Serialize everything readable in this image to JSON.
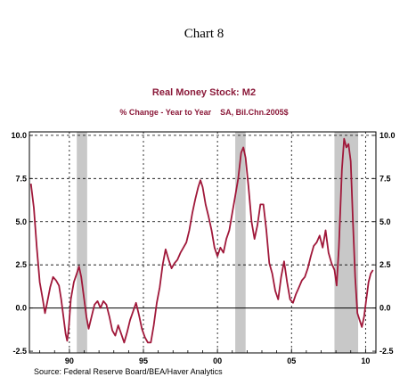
{
  "heading": "Chart 8",
  "chart_data": {
    "type": "line",
    "title": "Real Money Stock: M2",
    "subtitle": "% Change - Year to Year    SA, Bil.Chn.2005$",
    "source": "Source:  Federal Reserve Board/BEA/Haver Analytics",
    "xlim": [
      1987.3,
      2010.7
    ],
    "ylim": [
      -2.6,
      10.2
    ],
    "x_ticks": [
      {
        "value": 1990,
        "label": "90"
      },
      {
        "value": 1995,
        "label": "95"
      },
      {
        "value": 2000,
        "label": "00"
      },
      {
        "value": 2005,
        "label": "05"
      },
      {
        "value": 2010,
        "label": "10"
      }
    ],
    "y_ticks": [
      {
        "value": 10,
        "label": "10.0"
      },
      {
        "value": 7.5,
        "label": "7.5"
      },
      {
        "value": 5,
        "label": "5.0"
      },
      {
        "value": 2.5,
        "label": "2.5"
      },
      {
        "value": 0,
        "label": "0.0"
      },
      {
        "value": -2.5,
        "label": "-2.5"
      }
    ],
    "grid": {
      "y_dashed_at": [
        10,
        7.5,
        5,
        2.5
      ],
      "zero_line": 0,
      "x_dashed_at": [
        1990,
        1995,
        2000,
        2005,
        2010
      ]
    },
    "recessions": [
      [
        1990.5,
        1991.2
      ],
      [
        2001.2,
        2001.9
      ],
      [
        2007.9,
        2009.5
      ]
    ],
    "series": [
      {
        "color": "#a0183a",
        "points": [
          [
            1987.4,
            7.2
          ],
          [
            1987.6,
            5.8
          ],
          [
            1987.8,
            3.5
          ],
          [
            1988.0,
            1.5
          ],
          [
            1988.2,
            0.5
          ],
          [
            1988.35,
            -0.3
          ],
          [
            1988.5,
            0.3
          ],
          [
            1988.7,
            1.2
          ],
          [
            1988.9,
            1.8
          ],
          [
            1989.1,
            1.6
          ],
          [
            1989.3,
            1.3
          ],
          [
            1989.45,
            0.5
          ],
          [
            1989.6,
            -0.5
          ],
          [
            1989.75,
            -1.5
          ],
          [
            1989.85,
            -1.9
          ],
          [
            1989.95,
            -1.2
          ],
          [
            1990.1,
            0.5
          ],
          [
            1990.3,
            1.5
          ],
          [
            1990.5,
            2.0
          ],
          [
            1990.65,
            2.4
          ],
          [
            1990.8,
            1.8
          ],
          [
            1991.0,
            0.5
          ],
          [
            1991.15,
            -0.5
          ],
          [
            1991.3,
            -1.2
          ],
          [
            1991.5,
            -0.5
          ],
          [
            1991.7,
            0.2
          ],
          [
            1991.9,
            0.4
          ],
          [
            1992.1,
            0.0
          ],
          [
            1992.3,
            0.4
          ],
          [
            1992.5,
            0.2
          ],
          [
            1992.7,
            -0.5
          ],
          [
            1992.9,
            -1.3
          ],
          [
            1993.1,
            -1.6
          ],
          [
            1993.3,
            -1.0
          ],
          [
            1993.5,
            -1.5
          ],
          [
            1993.7,
            -2.0
          ],
          [
            1993.9,
            -1.4
          ],
          [
            1994.1,
            -0.7
          ],
          [
            1994.3,
            -0.2
          ],
          [
            1994.5,
            0.3
          ],
          [
            1994.7,
            -0.4
          ],
          [
            1994.9,
            -1.2
          ],
          [
            1995.1,
            -1.7
          ],
          [
            1995.3,
            -2.0
          ],
          [
            1995.5,
            -2.0
          ],
          [
            1995.7,
            -1.0
          ],
          [
            1995.9,
            0.3
          ],
          [
            1996.1,
            1.2
          ],
          [
            1996.3,
            2.5
          ],
          [
            1996.5,
            3.4
          ],
          [
            1996.7,
            2.8
          ],
          [
            1996.9,
            2.3
          ],
          [
            1997.1,
            2.6
          ],
          [
            1997.3,
            2.8
          ],
          [
            1997.5,
            3.2
          ],
          [
            1997.7,
            3.5
          ],
          [
            1997.9,
            3.8
          ],
          [
            1998.1,
            4.5
          ],
          [
            1998.3,
            5.5
          ],
          [
            1998.5,
            6.3
          ],
          [
            1998.7,
            7.0
          ],
          [
            1998.85,
            7.4
          ],
          [
            1999.0,
            7.0
          ],
          [
            1999.2,
            6.0
          ],
          [
            1999.4,
            5.3
          ],
          [
            1999.6,
            4.5
          ],
          [
            1999.8,
            3.5
          ],
          [
            2000.0,
            3.0
          ],
          [
            2000.2,
            3.5
          ],
          [
            2000.4,
            3.2
          ],
          [
            2000.6,
            4.0
          ],
          [
            2000.8,
            4.5
          ],
          [
            2001.0,
            5.5
          ],
          [
            2001.2,
            6.5
          ],
          [
            2001.4,
            7.5
          ],
          [
            2001.6,
            9.0
          ],
          [
            2001.75,
            9.3
          ],
          [
            2001.9,
            8.7
          ],
          [
            2002.1,
            7.0
          ],
          [
            2002.3,
            5.0
          ],
          [
            2002.5,
            4.0
          ],
          [
            2002.7,
            4.8
          ],
          [
            2002.9,
            6.0
          ],
          [
            2003.1,
            6.0
          ],
          [
            2003.3,
            4.5
          ],
          [
            2003.5,
            2.6
          ],
          [
            2003.7,
            2.0
          ],
          [
            2003.9,
            1.0
          ],
          [
            2004.1,
            0.5
          ],
          [
            2004.3,
            1.8
          ],
          [
            2004.5,
            2.7
          ],
          [
            2004.7,
            1.5
          ],
          [
            2004.9,
            0.5
          ],
          [
            2005.1,
            0.3
          ],
          [
            2005.3,
            0.8
          ],
          [
            2005.5,
            1.2
          ],
          [
            2005.7,
            1.6
          ],
          [
            2005.9,
            1.8
          ],
          [
            2006.1,
            2.3
          ],
          [
            2006.3,
            3.0
          ],
          [
            2006.5,
            3.6
          ],
          [
            2006.7,
            3.8
          ],
          [
            2006.9,
            4.2
          ],
          [
            2007.1,
            3.5
          ],
          [
            2007.3,
            4.5
          ],
          [
            2007.5,
            3.2
          ],
          [
            2007.7,
            2.6
          ],
          [
            2007.9,
            2.2
          ],
          [
            2008.05,
            1.3
          ],
          [
            2008.2,
            3.5
          ],
          [
            2008.4,
            8.0
          ],
          [
            2008.55,
            9.8
          ],
          [
            2008.7,
            9.3
          ],
          [
            2008.85,
            9.5
          ],
          [
            2009.0,
            8.5
          ],
          [
            2009.15,
            5.0
          ],
          [
            2009.3,
            1.8
          ],
          [
            2009.45,
            -0.3
          ],
          [
            2009.6,
            -0.7
          ],
          [
            2009.75,
            -1.1
          ],
          [
            2009.9,
            -0.5
          ],
          [
            2010.05,
            0.5
          ],
          [
            2010.2,
            1.5
          ],
          [
            2010.35,
            2.0
          ],
          [
            2010.5,
            2.2
          ]
        ]
      }
    ]
  }
}
